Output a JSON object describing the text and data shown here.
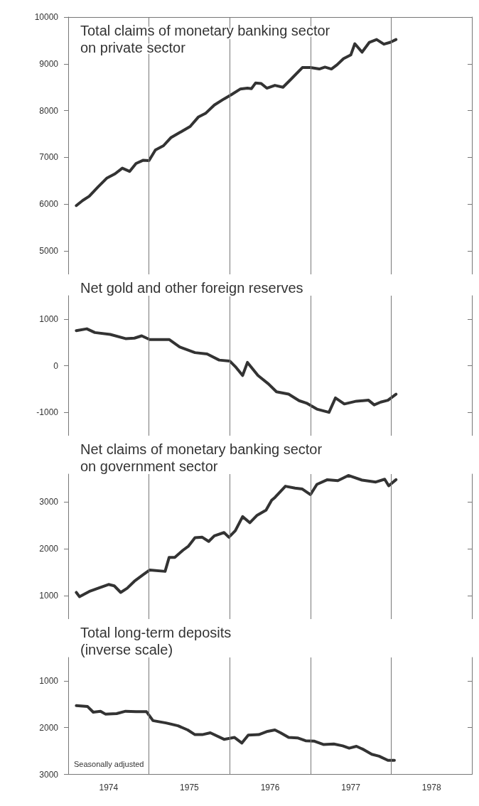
{
  "chart_data": [
    {
      "type": "line",
      "marker": "none",
      "line_style": "solid",
      "tick_labels": "y",
      "xlim": [
        1974,
        1979
      ],
      "ylim": [
        4500,
        10000
      ],
      "yticks": [
        5000,
        6000,
        7000,
        8000,
        9000,
        10000
      ],
      "ref_lines": [
        {
          "axis": "x",
          "value": 1975,
          "label": null
        },
        {
          "axis": "x",
          "value": 1976,
          "label": null
        },
        {
          "axis": "x",
          "value": 1977,
          "label": null
        },
        {
          "axis": "x",
          "value": 1978,
          "label": null
        }
      ],
      "series": [
        {
          "name": "Total claims of monetary banking sector\non private sector",
          "color": "#333333",
          "x": [
            1974.1,
            1974.18,
            1974.26,
            1974.37,
            1974.48,
            1974.58,
            1974.67,
            1974.76,
            1974.84,
            1974.93,
            1975.0,
            1975.08,
            1975.18,
            1975.27,
            1975.38,
            1975.51,
            1975.61,
            1975.7,
            1975.81,
            1975.93,
            1976.02,
            1976.13,
            1976.22,
            1976.27,
            1976.32,
            1976.39,
            1976.46,
            1976.56,
            1976.66,
            1976.77,
            1976.9,
            1977.0,
            1977.11,
            1977.18,
            1977.26,
            1977.33,
            1977.41,
            1977.5,
            1977.55,
            1977.64,
            1977.73,
            1977.82,
            1977.91,
            1977.99,
            1978.06
          ],
          "values": [
            5970,
            6080,
            6170,
            6370,
            6560,
            6650,
            6770,
            6700,
            6870,
            6940,
            6930,
            7160,
            7250,
            7420,
            7530,
            7660,
            7860,
            7940,
            8120,
            8250,
            8340,
            8460,
            8480,
            8470,
            8590,
            8580,
            8480,
            8540,
            8500,
            8690,
            8920,
            8920,
            8890,
            8930,
            8890,
            8980,
            9110,
            9190,
            9430,
            9250,
            9460,
            9520,
            9420,
            9460,
            9520
          ]
        }
      ]
    },
    {
      "type": "line",
      "marker": "none",
      "line_style": "solid",
      "tick_labels": "y",
      "xlim": [
        1974,
        1979
      ],
      "ylim": [
        -1500,
        1500
      ],
      "yticks": [
        -1000,
        0,
        1000
      ],
      "ref_lines": [
        {
          "axis": "x",
          "value": 1975,
          "label": null
        },
        {
          "axis": "x",
          "value": 1976,
          "label": null
        },
        {
          "axis": "x",
          "value": 1977,
          "label": null
        },
        {
          "axis": "x",
          "value": 1978,
          "label": null
        }
      ],
      "series": [
        {
          "name": "Net gold and other foreign reserves",
          "color": "#333333",
          "x": [
            1974.1,
            1974.23,
            1974.33,
            1974.52,
            1974.71,
            1974.82,
            1974.91,
            1975.01,
            1975.25,
            1975.38,
            1975.57,
            1975.72,
            1975.87,
            1976.0,
            1976.07,
            1976.16,
            1976.22,
            1976.35,
            1976.48,
            1976.58,
            1976.73,
            1976.86,
            1976.95,
            1977.08,
            1977.23,
            1977.31,
            1977.42,
            1977.57,
            1977.72,
            1977.79,
            1977.87,
            1977.96,
            1978.06
          ],
          "values": [
            750,
            790,
            710,
            670,
            580,
            590,
            640,
            560,
            560,
            400,
            280,
            250,
            120,
            100,
            -20,
            -210,
            70,
            -210,
            -390,
            -560,
            -610,
            -750,
            -800,
            -930,
            -1000,
            -690,
            -820,
            -760,
            -740,
            -840,
            -780,
            -740,
            -610
          ]
        }
      ]
    },
    {
      "type": "line",
      "marker": "none",
      "line_style": "solid",
      "tick_labels": "y",
      "xlim": [
        1974,
        1979
      ],
      "ylim": [
        500,
        3600
      ],
      "yticks": [
        1000,
        2000,
        3000
      ],
      "ref_lines": [
        {
          "axis": "x",
          "value": 1975,
          "label": null
        },
        {
          "axis": "x",
          "value": 1976,
          "label": null
        },
        {
          "axis": "x",
          "value": 1977,
          "label": null
        },
        {
          "axis": "x",
          "value": 1978,
          "label": null
        }
      ],
      "series": [
        {
          "name": "Net claims of monetary banking sector\non government sector",
          "color": "#333333",
          "x": [
            1974.1,
            1974.14,
            1974.26,
            1974.37,
            1974.5,
            1974.57,
            1974.65,
            1974.73,
            1974.82,
            1974.93,
            1975.01,
            1975.2,
            1975.25,
            1975.32,
            1975.42,
            1975.49,
            1975.57,
            1975.66,
            1975.74,
            1975.81,
            1975.93,
            1975.99,
            1976.07,
            1976.16,
            1976.25,
            1976.34,
            1976.45,
            1976.52,
            1976.56,
            1976.69,
            1976.81,
            1976.9,
            1977.0,
            1977.08,
            1977.21,
            1977.34,
            1977.47,
            1977.64,
            1977.81,
            1977.92,
            1977.97,
            1978.06
          ],
          "values": [
            1070,
            980,
            1090,
            1160,
            1240,
            1210,
            1070,
            1160,
            1310,
            1450,
            1550,
            1520,
            1820,
            1820,
            1970,
            2060,
            2240,
            2250,
            2160,
            2280,
            2350,
            2250,
            2390,
            2690,
            2560,
            2720,
            2830,
            3040,
            3100,
            3340,
            3300,
            3280,
            3160,
            3380,
            3480,
            3460,
            3570,
            3470,
            3430,
            3490,
            3350,
            3480
          ]
        }
      ]
    },
    {
      "type": "line",
      "marker": "none",
      "line_style": "solid",
      "xlim": [
        1974,
        1979
      ],
      "xticks": [
        {
          "value": 1974.5,
          "label": "1974"
        },
        {
          "value": 1975.5,
          "label": "1975"
        },
        {
          "value": 1976.5,
          "label": "1976"
        },
        {
          "value": 1977.5,
          "label": "1977"
        },
        {
          "value": 1978.5,
          "label": "1978"
        }
      ],
      "ylim": [
        3000,
        500
      ],
      "yticks": [
        1000,
        2000,
        3000
      ],
      "ref_lines": [
        {
          "axis": "x",
          "value": 1975,
          "label": null
        },
        {
          "axis": "x",
          "value": 1976,
          "label": null
        },
        {
          "axis": "x",
          "value": 1977,
          "label": null
        },
        {
          "axis": "x",
          "value": 1978,
          "label": null
        }
      ],
      "annotations": [
        "Seasonally adjusted"
      ],
      "series": [
        {
          "name": "Total long-term deposits\n(inverse scale)",
          "color": "#333333",
          "x": [
            1974.1,
            1974.24,
            1974.31,
            1974.4,
            1974.46,
            1974.6,
            1974.71,
            1974.84,
            1974.97,
            1975.05,
            1975.21,
            1975.36,
            1975.48,
            1975.57,
            1975.66,
            1975.76,
            1975.93,
            1976.06,
            1976.15,
            1976.23,
            1976.36,
            1976.47,
            1976.56,
            1976.63,
            1976.73,
            1976.84,
            1976.94,
            1977.05,
            1977.16,
            1977.29,
            1977.4,
            1977.48,
            1977.57,
            1977.66,
            1977.76,
            1977.85,
            1977.96,
            1978.04
          ],
          "values": [
            1530,
            1550,
            1670,
            1650,
            1710,
            1700,
            1650,
            1660,
            1660,
            1850,
            1900,
            1960,
            2050,
            2150,
            2150,
            2110,
            2250,
            2210,
            2330,
            2160,
            2150,
            2080,
            2050,
            2110,
            2210,
            2220,
            2280,
            2290,
            2360,
            2350,
            2390,
            2440,
            2400,
            2470,
            2570,
            2610,
            2700,
            2700
          ]
        }
      ]
    }
  ]
}
